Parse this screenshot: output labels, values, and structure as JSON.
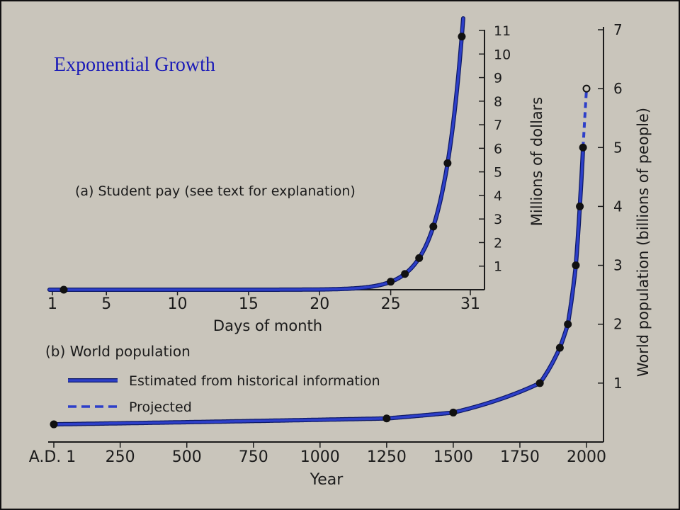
{
  "title": "Exponential Growth",
  "colors": {
    "background": "#c9c5bb",
    "curve": "#2d3fc9",
    "title": "#1a1ab8",
    "axis": "#1b1b1b"
  },
  "chart_data": [
    {
      "id": "student_pay",
      "type": "line",
      "label": "(a)  Student pay (see text for explanation)",
      "xlabel": "Days of month",
      "ylabel": "Millions of dollars",
      "xlim": [
        1,
        31
      ],
      "ylim": [
        0,
        11
      ],
      "xticks": [
        1,
        5,
        10,
        15,
        20,
        25,
        31
      ],
      "yticks": [
        1,
        2,
        3,
        4,
        5,
        6,
        7,
        8,
        9,
        10,
        11
      ],
      "markers": [
        {
          "x": 2,
          "y": 0.0
        },
        {
          "x": 25,
          "y": 0.34
        },
        {
          "x": 26,
          "y": 0.67
        },
        {
          "x": 27,
          "y": 1.34
        },
        {
          "x": 28,
          "y": 2.68
        },
        {
          "x": 29,
          "y": 5.37
        },
        {
          "x": 30,
          "y": 10.74
        }
      ]
    },
    {
      "id": "world_population",
      "type": "line",
      "label": "(b)  World population",
      "xlabel": "Year",
      "ylabel": "World population (billions of people)",
      "xlim": [
        1,
        2000
      ],
      "ylim": [
        0,
        7
      ],
      "xtick_labels": [
        "A.D. 1",
        "250",
        "500",
        "750",
        "1000",
        "1250",
        "1500",
        "1750",
        "2000"
      ],
      "xticks": [
        1,
        250,
        500,
        750,
        1000,
        1250,
        1500,
        1750,
        2000
      ],
      "yticks": [
        1,
        2,
        3,
        4,
        5,
        6,
        7
      ],
      "legend": [
        {
          "label": "Estimated from historical information",
          "style": "solid"
        },
        {
          "label": "Projected",
          "style": "dashed"
        }
      ],
      "series": [
        {
          "name": "Estimated from historical information",
          "style": "solid",
          "points": [
            {
              "x": 1,
              "y": 0.3
            },
            {
              "x": 1250,
              "y": 0.4
            },
            {
              "x": 1500,
              "y": 0.5
            },
            {
              "x": 1825,
              "y": 1.0
            },
            {
              "x": 1900,
              "y": 1.6
            },
            {
              "x": 1930,
              "y": 2.0
            },
            {
              "x": 1960,
              "y": 3.0
            },
            {
              "x": 1975,
              "y": 4.0
            },
            {
              "x": 1987,
              "y": 5.0
            }
          ]
        },
        {
          "name": "Projected",
          "style": "dashed",
          "points": [
            {
              "x": 1987,
              "y": 5.0
            },
            {
              "x": 2000,
              "y": 6.0
            }
          ]
        }
      ]
    }
  ]
}
